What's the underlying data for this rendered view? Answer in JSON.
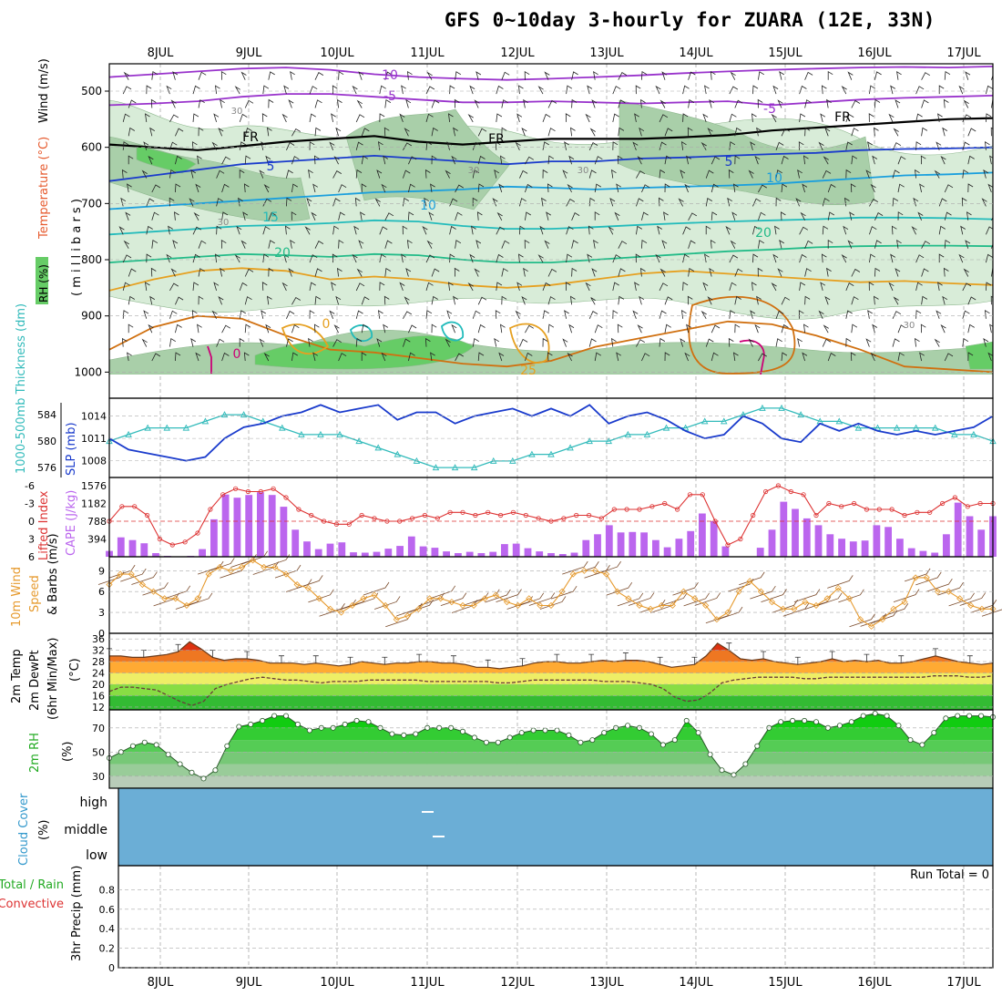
{
  "title": "GFS 0~10day 3-hourly for ZUARA (12E, 33N)",
  "days": [
    "8JUL",
    "9JUL",
    "10JUL",
    "11JUL",
    "12JUL",
    "13JUL",
    "14JUL",
    "15JUL",
    "16JUL",
    "17JUL"
  ],
  "colors": {
    "rh_light": "#d8ecd8",
    "rh_mid": "#a9cfa9",
    "rh_dark": "#6fb06f",
    "rh_bright": "#66cc66",
    "thickness": "#33bbbb",
    "slp": "#1a3bcc",
    "lifted": "#dd3333",
    "cape": "#bb66ee",
    "wind": "#e69a2e",
    "cloud": "#6baed6",
    "grid": "#999999"
  },
  "chart_data": [
    {
      "type": "contour",
      "panel": "upper-air",
      "labels": {
        "rh": "RH (%)",
        "temperature": "Temperature (°C)",
        "wind": "Wind (m/s)",
        "pressure": "( m i l l i b a r s )"
      },
      "y_ticks": [
        500,
        600,
        700,
        800,
        900,
        1000
      ],
      "ylim": [
        1000,
        450
      ],
      "contour_labels": [
        "10",
        "-5",
        "-5",
        "FR",
        "FR",
        "FR",
        "5",
        "5",
        "10",
        "10",
        "15",
        "20",
        "20",
        "0",
        "0",
        "25",
        "30",
        "30",
        "30",
        "30",
        "30"
      ],
      "isotherms": [
        {
          "label": "-10",
          "color": "#9933cc",
          "values": [
            475,
            470,
            465,
            460,
            458,
            462,
            470,
            475,
            478,
            480,
            478,
            475,
            472,
            468,
            465,
            462,
            460,
            458,
            457,
            458,
            456
          ]
        },
        {
          "label": "-5",
          "color": "#9933cc",
          "values": [
            525,
            522,
            518,
            510,
            505,
            505,
            510,
            515,
            520,
            520,
            518,
            520,
            522,
            520,
            518,
            525,
            520,
            515,
            512,
            510,
            508
          ]
        },
        {
          "label": "FR",
          "color": "#000000",
          "values": [
            595,
            600,
            605,
            598,
            590,
            585,
            580,
            590,
            595,
            590,
            585,
            585,
            585,
            582,
            578,
            570,
            565,
            560,
            555,
            550,
            548
          ]
        },
        {
          "label": "5",
          "color": "#1a3bcc",
          "values": [
            660,
            650,
            640,
            630,
            625,
            620,
            615,
            620,
            625,
            630,
            625,
            625,
            620,
            618,
            615,
            612,
            610,
            605,
            603,
            602,
            600
          ]
        },
        {
          "label": "10",
          "color": "#1a9fdd",
          "values": [
            710,
            705,
            700,
            695,
            690,
            685,
            680,
            678,
            675,
            670,
            672,
            675,
            672,
            670,
            668,
            665,
            660,
            655,
            650,
            648,
            645
          ]
        },
        {
          "label": "15",
          "color": "#22bbbb",
          "values": [
            755,
            750,
            745,
            740,
            738,
            735,
            730,
            732,
            740,
            745,
            745,
            742,
            738,
            735,
            732,
            730,
            728,
            725,
            725,
            726,
            728
          ]
        },
        {
          "label": "20",
          "color": "#22bb88",
          "values": [
            805,
            800,
            795,
            790,
            792,
            795,
            790,
            792,
            800,
            805,
            805,
            800,
            795,
            790,
            785,
            782,
            778,
            776,
            775,
            775,
            776
          ]
        },
        {
          "label": "25",
          "color": "#e6a020",
          "values": [
            855,
            835,
            820,
            815,
            820,
            835,
            830,
            835,
            845,
            850,
            845,
            835,
            825,
            820,
            825,
            830,
            835,
            840,
            838,
            842,
            845
          ]
        },
        {
          "label": "30",
          "color": "#d07010",
          "values": [
            960,
            920,
            900,
            905,
            935,
            960,
            965,
            975,
            985,
            990,
            980,
            955,
            940,
            925,
            910,
            915,
            935,
            960,
            990,
            995,
            1000
          ]
        }
      ]
    },
    {
      "type": "line",
      "panel": "thickness-slp",
      "ylabel_left": "1000-500mb Thickness (dm)",
      "ylabel_right": "SLP (mb)",
      "thickness_ticks": [
        576,
        580,
        584
      ],
      "slp_ticks": [
        1008,
        1011,
        1014
      ],
      "ylim_thickness": [
        574.5,
        586.5
      ],
      "ylim_slp": [
        1005.75,
        1016.4
      ],
      "series": [
        {
          "name": "1000-500mb Thickness",
          "values": [
            580,
            581,
            582,
            582,
            582,
            583,
            584,
            584,
            583,
            582,
            581,
            581,
            581,
            580,
            579,
            578,
            577,
            576,
            576,
            576,
            577,
            577,
            578,
            578,
            579,
            580,
            580,
            581,
            581,
            582,
            582,
            583,
            583,
            584,
            585,
            585,
            584,
            583,
            583,
            582,
            582,
            582,
            582,
            582,
            581,
            581,
            580
          ]
        },
        {
          "name": "SLP",
          "values": [
            1011,
            1009.5,
            1009,
            1008.5,
            1008,
            1008.5,
            1011,
            1012.5,
            1013,
            1014,
            1014.5,
            1015.5,
            1014.5,
            1015,
            1015.5,
            1013.5,
            1014.5,
            1014.5,
            1013,
            1014,
            1014.5,
            1015,
            1014,
            1015,
            1014,
            1015.5,
            1013,
            1014,
            1014.5,
            1013.5,
            1012,
            1011,
            1011.5,
            1014,
            1013,
            1011,
            1010.5,
            1013,
            1012,
            1013,
            1012,
            1011.5,
            1012,
            1011.5,
            1012,
            1012.5,
            1014
          ]
        }
      ]
    },
    {
      "type": "bar",
      "panel": "cape-lifted",
      "ylabel_left": "Lifted Index",
      "ylabel_right": "CAPE (J/kg)",
      "cape_ticks": [
        394,
        788,
        1182,
        1576
      ],
      "li_ticks": [
        "-6",
        "-3",
        "0",
        "3",
        "6"
      ],
      "ylim_cape": [
        0,
        1576
      ],
      "ylim_lifted": [
        6,
        -6
      ],
      "series": [
        {
          "name": "CAPE",
          "values": [
            130,
            430,
            370,
            300,
            80,
            20,
            10,
            20,
            170,
            830,
            1380,
            1310,
            1370,
            1430,
            1370,
            1110,
            600,
            340,
            170,
            290,
            320,
            100,
            90,
            110,
            180,
            240,
            450,
            230,
            200,
            120,
            80,
            110,
            80,
            110,
            280,
            290,
            190,
            120,
            80,
            60,
            90,
            370,
            500,
            700,
            540,
            550,
            540,
            370,
            210,
            400,
            570,
            960,
            790,
            230,
            10,
            10,
            200,
            600,
            1220,
            1060,
            850,
            700,
            500,
            400,
            340,
            360,
            700,
            660,
            400,
            190,
            130,
            90,
            500,
            1200,
            900,
            600,
            900
          ]
        },
        {
          "name": "Lifted Index",
          "values": [
            0,
            -2.5,
            -2.5,
            -1,
            3,
            4,
            3.5,
            2,
            -2,
            -4.5,
            -5.5,
            -5,
            -5,
            -5.5,
            -4,
            -2,
            -1,
            0,
            0.5,
            0.5,
            -1,
            -0.5,
            0,
            0,
            -0.5,
            -1,
            -0.5,
            -1.5,
            -1.5,
            -1,
            -1.5,
            -1,
            -1.5,
            -1,
            -0.5,
            0,
            -0.5,
            -1,
            -1,
            -0.5,
            -2,
            -2,
            -2,
            -2.5,
            -3,
            -2,
            -4.5,
            -4.5,
            0,
            4,
            3,
            -1,
            -5,
            -6,
            -5,
            -4.5,
            -1,
            -3,
            -2.5,
            -3,
            -2,
            -2,
            -2,
            -1,
            -1.5,
            -1.5,
            -3,
            -4,
            -2.5,
            -3,
            -3
          ]
        }
      ]
    },
    {
      "type": "line",
      "panel": "wind-10m",
      "ylabel": "10m Wind Speed & Barbs (m/s)",
      "y_ticks": [
        0,
        3,
        6,
        9
      ],
      "ylim": [
        0,
        11
      ],
      "values": [
        7,
        8.5,
        8.5,
        7,
        6,
        5,
        5,
        4,
        5,
        8.5,
        9.5,
        9,
        9.5,
        10.5,
        9.5,
        9.5,
        8.5,
        7,
        6.5,
        5,
        3.5,
        3,
        4,
        5,
        5.5,
        4,
        2,
        2.5,
        3.5,
        5,
        5,
        4.5,
        4,
        4,
        5,
        5.5,
        4.5,
        4,
        5,
        4,
        4,
        6,
        8.5,
        9,
        9,
        8.5,
        6,
        5,
        4,
        3.5,
        4,
        4,
        6,
        5,
        4,
        2,
        3,
        6,
        7.5,
        6,
        4.5,
        3.5,
        3.5,
        4.5,
        4,
        5,
        6.5,
        5,
        2,
        1,
        2,
        3.5,
        4.5,
        8,
        8,
        6,
        6,
        5,
        4,
        3.5,
        3.5
      ]
    },
    {
      "type": "area",
      "panel": "temp-2m",
      "ylabel": "2m Temp 2m DewPt (6hr Min/Max) (°C)",
      "y_ticks": [
        12,
        16,
        20,
        24,
        28,
        32,
        36
      ],
      "ylim": [
        11,
        38
      ],
      "series": [
        {
          "name": "2m Temp",
          "values": [
            30,
            30,
            29.5,
            29.5,
            30,
            30.5,
            31.5,
            35,
            32.5,
            29.5,
            28.5,
            29,
            29,
            28.5,
            27.5,
            27.5,
            27.5,
            27,
            27.5,
            27,
            26.5,
            27,
            28,
            27.5,
            27,
            27.5,
            27.5,
            28,
            28,
            27.5,
            27.5,
            27,
            26,
            26,
            25.5,
            26,
            26.5,
            27.5,
            28,
            28,
            27.5,
            27.5,
            28,
            28.5,
            28,
            28.5,
            28.5,
            28,
            27,
            26,
            26.5,
            27,
            30,
            34.5,
            32,
            29,
            28.5,
            29,
            28,
            27.5,
            27,
            27.5,
            28,
            29,
            28,
            28.5,
            28,
            28.5,
            27.5,
            27.5,
            28,
            29,
            30,
            29,
            28,
            27.5,
            27,
            27.5
          ]
        },
        {
          "name": "2m DewPt",
          "values": [
            17.5,
            19,
            19,
            18.5,
            18,
            16,
            14,
            12.5,
            14,
            18.5,
            20,
            21,
            22,
            22.5,
            22,
            21.5,
            21.5,
            21,
            20.5,
            21,
            21,
            21,
            21.5,
            21.5,
            21.5,
            21.5,
            21.5,
            21,
            21,
            21,
            21,
            21,
            21,
            20.5,
            20.5,
            21,
            21.5,
            21.5,
            21.5,
            21.5,
            21.5,
            21.5,
            21,
            21,
            21,
            20.5,
            20,
            18.5,
            15.5,
            14,
            14.5,
            17,
            20.5,
            21.5,
            22,
            22.5,
            22.5,
            22.5,
            22.5,
            22,
            22,
            22.5,
            22.5,
            22.5,
            22.5,
            22.5,
            22.5,
            22.5,
            22.5,
            22.5,
            23,
            23,
            23,
            22.5,
            22.5,
            23
          ]
        }
      ]
    },
    {
      "type": "area",
      "panel": "rh-2m",
      "ylabel": "2m RH (%)",
      "y_ticks": [
        30,
        50,
        70
      ],
      "ylim": [
        20,
        85
      ],
      "values": [
        45,
        50,
        55,
        58,
        56,
        48,
        40,
        33,
        28,
        35,
        55,
        71,
        73,
        76,
        80,
        80,
        73,
        68,
        70,
        70,
        73,
        76,
        75,
        70,
        65,
        64,
        65,
        70,
        70,
        70,
        67,
        62,
        58,
        58,
        62,
        66,
        68,
        68,
        68,
        64,
        58,
        60,
        66,
        70,
        72,
        70,
        65,
        56,
        60,
        76,
        66,
        48,
        35,
        31,
        40,
        55,
        70,
        75,
        76,
        76,
        75,
        70,
        72,
        75,
        80,
        82,
        80,
        72,
        60,
        56,
        66,
        78,
        80,
        80,
        80,
        79
      ]
    },
    {
      "type": "bar",
      "panel": "cloud-cover",
      "ylabel": "Cloud Cover (%)",
      "categories": [
        "high",
        "middle",
        "low"
      ]
    },
    {
      "type": "bar",
      "panel": "precip",
      "ylabel": "3hr Precip (mm)",
      "legend": [
        "Total / Rain",
        "Convective"
      ],
      "y_ticks": [
        "0",
        "0.2",
        "0.4",
        "0.6",
        "0.8"
      ],
      "ylim": [
        0,
        1
      ],
      "run_total": "Run Total = 0",
      "values": []
    }
  ]
}
